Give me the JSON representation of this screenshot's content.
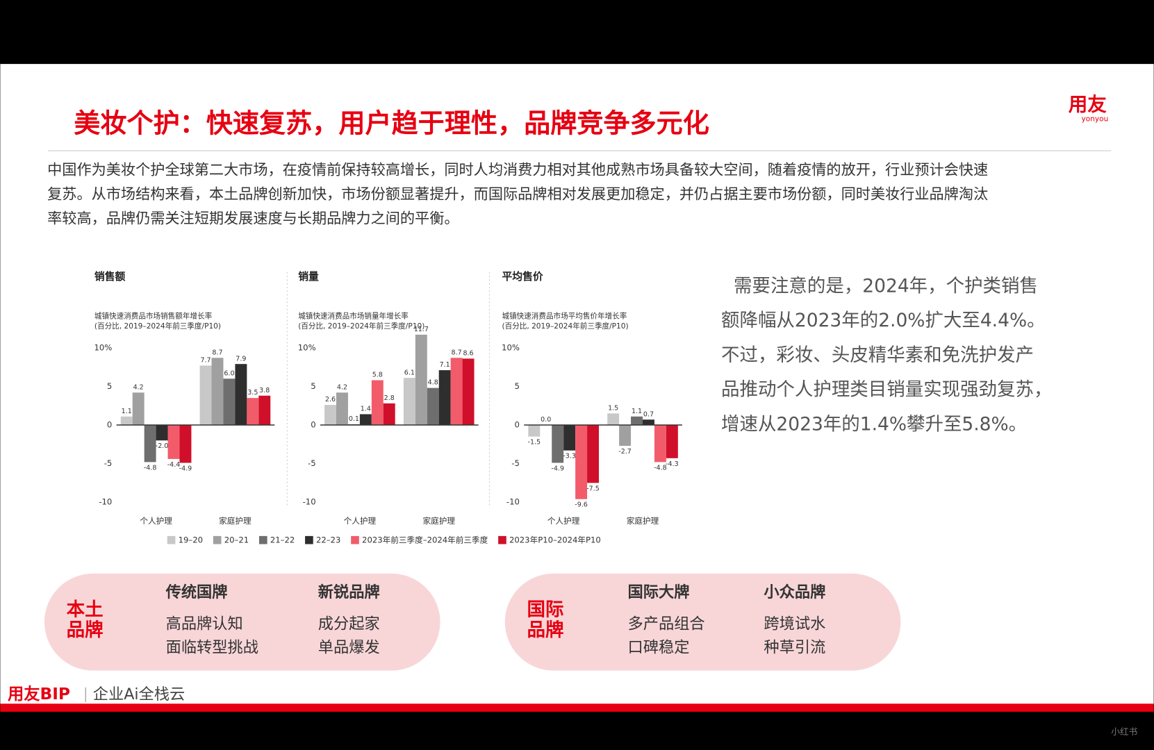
{
  "header": {
    "title": "美妆个护：快速复苏，用户趋于理性，品牌竞争多元化",
    "logo": "用友",
    "logo_sub": "yonyou"
  },
  "intro": [
    "中国作为美妆个护全球第二大市场，在疫情前保持较高增长，同时人均消费力相对其他成熟市场具备较大空间，随着疫情的放开，行业预计会快速",
    "复苏。从市场结构来看，本土品牌创新加快，市场份额显著提升，而国际品牌相对发展更加稳定，并仍占据主要市场份额，同时美妆行业品牌淘汰",
    "率较高，品牌仍需关注短期发展速度与长期品牌力之间的平衡。"
  ],
  "note": [
    "需要注意的是，2024年，个护类销售",
    "额降幅从2023年的2.0%扩大至4.4%。",
    "不过，彩妆、头皮精华素和免洗护发产",
    "品推动个人护理类目销量实现强劲复苏，",
    "增速从2023年的1.4%攀升至5.8%。"
  ],
  "chart_data": [
    {
      "type": "bar",
      "title": "销售额",
      "subtitle": [
        "城镇快速消费品市场销售额年增长率",
        "(百分比, 2019–2024年前三季度/P10)"
      ],
      "categories": [
        "个人护理",
        "家庭护理"
      ],
      "ylim": [
        -10,
        10
      ],
      "yticks": [
        {
          "value": 10,
          "label": "10%"
        },
        5,
        0,
        -5,
        -10
      ],
      "series": [
        {
          "name": "19–20",
          "color": "#c8c8c8",
          "values": [
            1.1,
            7.7
          ],
          "value_labels": [
            "1.1",
            "7.7"
          ]
        },
        {
          "name": "20–21",
          "color": "#a0a0a0",
          "values": [
            4.2,
            8.7
          ],
          "value_labels": [
            "4.2",
            "8.7"
          ]
        },
        {
          "name": "21–22",
          "color": "#6e6e6e",
          "values": [
            -4.8,
            6.0
          ],
          "value_labels": [
            "-4.8",
            "6.0"
          ]
        },
        {
          "name": "22–23",
          "color": "#2e2e2e",
          "values": [
            -2.0,
            7.9
          ],
          "value_labels": [
            "-2.0",
            "7.9"
          ]
        },
        {
          "name": "2023年前三季度–2024年前三季度",
          "color": "#f25c6a",
          "values": [
            -4.4,
            3.5
          ],
          "value_labels": [
            "-4.4",
            "3.5"
          ]
        },
        {
          "name": "2023年P10–2024年P10",
          "color": "#d0102a",
          "values": [
            -4.9,
            3.8
          ],
          "value_labels": [
            "-4.9",
            "3.8"
          ]
        }
      ]
    },
    {
      "type": "bar",
      "title": "销量",
      "subtitle": [
        "城镇快速消费品市场销量年增长率",
        "(百分比, 2019–2024年前三季度/P10)"
      ],
      "categories": [
        "个人护理",
        "家庭护理"
      ],
      "ylim": [
        -10,
        12
      ],
      "yticks": [
        {
          "value": 10,
          "label": "10%"
        },
        5,
        0,
        -5,
        -10
      ],
      "series": [
        {
          "color": "#c8c8c8",
          "values": [
            2.6,
            6.1
          ],
          "value_labels": [
            "2.6",
            "6.1"
          ]
        },
        {
          "color": "#a0a0a0",
          "values": [
            4.2,
            11.7
          ],
          "value_labels": [
            "4.2",
            "11.7"
          ]
        },
        {
          "color": "#6e6e6e",
          "values": [
            0.1,
            4.8
          ],
          "value_labels": [
            "0.1",
            "4.8"
          ]
        },
        {
          "color": "#2e2e2e",
          "values": [
            1.4,
            7.1
          ],
          "value_labels": [
            "1.4",
            "7.1"
          ]
        },
        {
          "color": "#f25c6a",
          "values": [
            5.8,
            8.7
          ],
          "value_labels": [
            "5.8",
            "8.7"
          ]
        },
        {
          "color": "#d0102a",
          "values": [
            2.8,
            8.6
          ],
          "value_labels": [
            "2.8",
            "8.6"
          ]
        }
      ]
    },
    {
      "type": "bar",
      "title": "平均售价",
      "subtitle": [
        "城镇快速消费品市场平均售价年增长率",
        "(百分比, 2019–2024年前三季度/P10)"
      ],
      "categories": [
        "个人护理",
        "家庭护理"
      ],
      "ylim": [
        -10,
        10
      ],
      "yticks": [
        {
          "value": 10,
          "label": "10%"
        },
        5,
        0,
        -5,
        -10
      ],
      "series": [
        {
          "color": "#c8c8c8",
          "values": [
            -1.5,
            1.5
          ],
          "value_labels": [
            "-1.5",
            "1.5"
          ]
        },
        {
          "color": "#a0a0a0",
          "values": [
            0.0,
            -2.7
          ],
          "value_labels": [
            "0.0",
            "-2.7"
          ]
        },
        {
          "color": "#6e6e6e",
          "values": [
            -4.9,
            1.1
          ],
          "value_labels": [
            "-4.9",
            "1.1"
          ]
        },
        {
          "color": "#2e2e2e",
          "values": [
            -3.3,
            0.7
          ],
          "value_labels": [
            "-3.3",
            "0.7"
          ]
        },
        {
          "color": "#f25c6a",
          "values": [
            -9.6,
            -4.8
          ],
          "value_labels": [
            "-9.6",
            "-4.8"
          ]
        },
        {
          "color": "#d0102a",
          "values": [
            -7.5,
            -4.3
          ],
          "value_labels": [
            "-7.5",
            "-4.3"
          ]
        }
      ]
    }
  ],
  "brands": [
    {
      "label": [
        "本土",
        "品牌"
      ],
      "groups": [
        {
          "name": "传统国牌",
          "items": [
            "高品牌认知",
            "面临转型挑战"
          ]
        },
        {
          "name": "新锐品牌",
          "items": [
            "成分起家",
            "单品爆发"
          ]
        }
      ]
    },
    {
      "label": [
        "国际",
        "品牌"
      ],
      "groups": [
        {
          "name": "国际大牌",
          "items": [
            "多产品组合",
            "口碑稳定"
          ]
        },
        {
          "name": "小众品牌",
          "items": [
            "跨境试水",
            "种草引流"
          ]
        }
      ]
    }
  ],
  "footer": {
    "brand": "用友BIP",
    "slogan": "企业Ai全栈云",
    "watermark": "小红书"
  }
}
